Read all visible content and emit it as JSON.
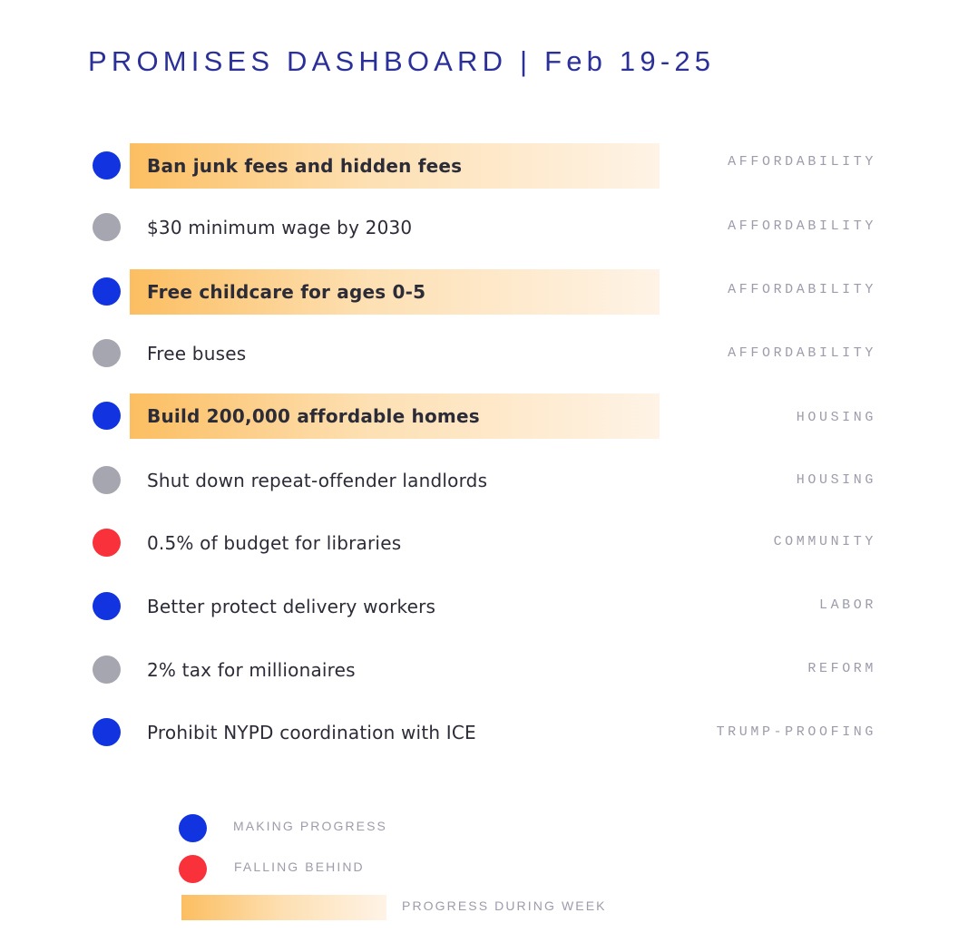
{
  "title": "PROMISES DASHBOARD | Feb 19-25",
  "colors": {
    "making_progress": "#1133e0",
    "falling_behind": "#f8313a",
    "no_change": "#a6a6b0",
    "weekly_progress_gradient_start": "#fcbe61",
    "weekly_progress_gradient_end": "#fef3e6",
    "title": "#2b3099"
  },
  "promises": [
    {
      "text": "Ban junk fees and hidden fees",
      "category": "AFFORDABILITY",
      "status": "making-progress",
      "progress_during_week": true
    },
    {
      "text": "$30 minimum wage by 2030",
      "category": "AFFORDABILITY",
      "status": "no-change",
      "progress_during_week": false
    },
    {
      "text": "Free childcare for ages 0-5",
      "category": "AFFORDABILITY",
      "status": "making-progress",
      "progress_during_week": true
    },
    {
      "text": "Free buses",
      "category": "AFFORDABILITY",
      "status": "no-change",
      "progress_during_week": false
    },
    {
      "text": "Build 200,000 affordable homes",
      "category": "HOUSING",
      "status": "making-progress",
      "progress_during_week": true
    },
    {
      "text": "Shut down repeat-offender landlords",
      "category": "HOUSING",
      "status": "no-change",
      "progress_during_week": false
    },
    {
      "text": "0.5% of budget for libraries",
      "category": "COMMUNITY",
      "status": "falling-behind",
      "progress_during_week": false
    },
    {
      "text": "Better protect delivery workers",
      "category": "LABOR",
      "status": "making-progress",
      "progress_during_week": false
    },
    {
      "text": "2% tax for millionaires",
      "category": "REFORM",
      "status": "no-change",
      "progress_during_week": false
    },
    {
      "text": "Prohibit NYPD coordination with ICE",
      "category": "TRUMP-PROOFING",
      "status": "making-progress",
      "progress_during_week": false
    }
  ],
  "legend": {
    "making_progress": "MAKING PROGRESS",
    "falling_behind": "FALLING BEHIND",
    "progress_during_week": "PROGRESS DURING WEEK"
  }
}
